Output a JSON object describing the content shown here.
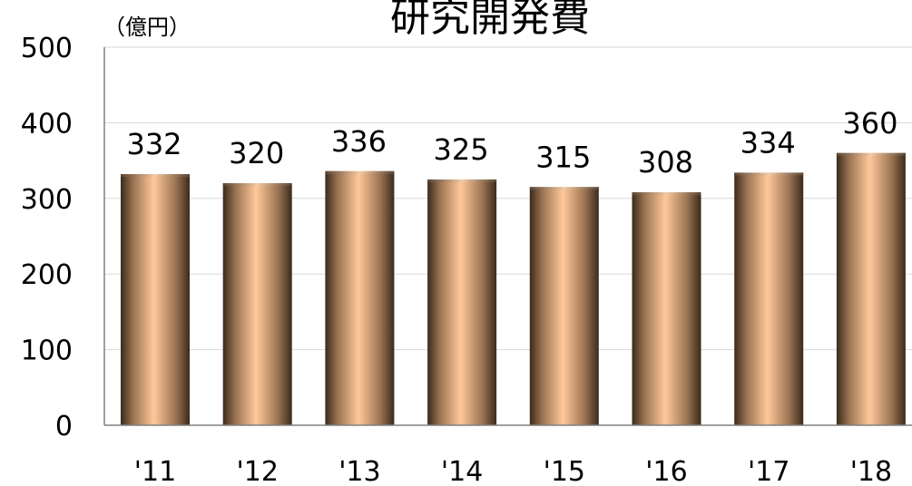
{
  "chart_data": {
    "type": "bar",
    "title": "研究開発費",
    "unit_label": "（億円）",
    "categories": [
      "'11",
      "'12",
      "'13",
      "'14",
      "'15",
      "'16",
      "'17",
      "'18"
    ],
    "values": [
      332,
      320,
      336,
      325,
      315,
      308,
      334,
      360
    ],
    "data_labels": [
      "332",
      "320",
      "336",
      "325",
      "315",
      "308",
      "334",
      "360"
    ],
    "yticks": [
      0,
      100,
      200,
      300,
      400,
      500
    ],
    "ytick_labels": [
      "0",
      "100",
      "200",
      "300",
      "400",
      "500"
    ],
    "ylim": [
      0,
      500
    ],
    "grid": true,
    "legend": "none",
    "colors": {
      "bar_light": "#ffc89a",
      "bar_dark": "#3a2a1c",
      "grid": "#d9d9d9",
      "axis": "#808080"
    }
  }
}
